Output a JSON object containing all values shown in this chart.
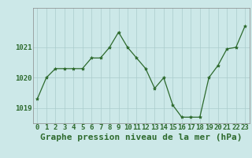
{
  "hours": [
    0,
    1,
    2,
    3,
    4,
    5,
    6,
    7,
    8,
    9,
    10,
    11,
    12,
    13,
    14,
    15,
    16,
    17,
    18,
    19,
    20,
    21,
    22,
    23
  ],
  "pressure": [
    1019.3,
    1020.0,
    1020.3,
    1020.3,
    1020.3,
    1020.3,
    1020.65,
    1020.65,
    1021.0,
    1021.5,
    1021.0,
    1020.65,
    1020.3,
    1019.65,
    1020.0,
    1019.1,
    1018.7,
    1018.7,
    1018.7,
    1020.0,
    1020.4,
    1020.95,
    1021.0,
    1021.7
  ],
  "bg_color": "#cce8e8",
  "line_color": "#2d6a2d",
  "marker_color": "#2d6a2d",
  "grid_color": "#aacccc",
  "axis_label_color": "#2d6a2d",
  "title": "Graphe pression niveau de la mer (hPa)",
  "ylim_min": 1018.5,
  "ylim_max": 1022.3,
  "yticks": [
    1019,
    1020,
    1021
  ],
  "title_fontsize": 8,
  "tick_fontsize": 6.5
}
